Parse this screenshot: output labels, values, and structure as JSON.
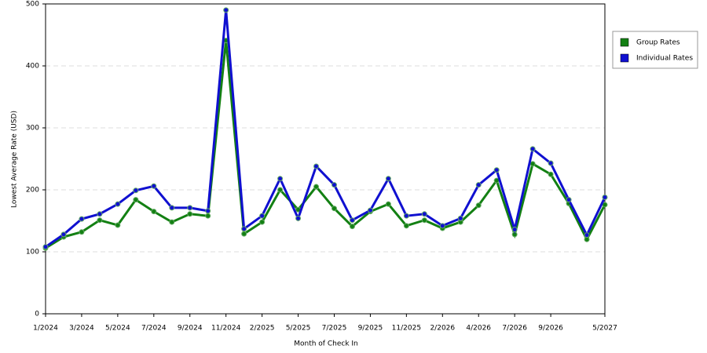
{
  "chart_data": {
    "type": "line",
    "x_label": "Month of Check In",
    "y_label": "Lowest Average Rate (USD)",
    "categories": [
      "1/2024",
      null,
      "3/2024",
      null,
      "5/2024",
      null,
      "7/2024",
      null,
      "9/2024",
      null,
      "11/2024",
      null,
      "2/2025",
      null,
      "5/2025",
      null,
      "7/2025",
      null,
      "9/2025",
      null,
      "11/2025",
      null,
      "2/2026",
      null,
      "4/2026",
      null,
      "7/2026",
      null,
      "9/2026",
      null,
      null,
      "5/2027"
    ],
    "series": [
      {
        "name": "Group Rates",
        "color": "#138013",
        "values": [
          106,
          124,
          132,
          151,
          143,
          184,
          165,
          148,
          161,
          158,
          441,
          129,
          148,
          200,
          168,
          205,
          170,
          141,
          165,
          177,
          142,
          151,
          138,
          148,
          175,
          215,
          128,
          242,
          225,
          178,
          120,
          176
        ]
      },
      {
        "name": "Individual Rates",
        "color": "#1010d0",
        "values": [
          108,
          128,
          153,
          161,
          177,
          199,
          206,
          171,
          171,
          166,
          490,
          137,
          158,
          218,
          154,
          238,
          208,
          151,
          167,
          218,
          158,
          161,
          142,
          154,
          208,
          232,
          136,
          266,
          243,
          184,
          127,
          188
        ]
      }
    ],
    "ylim": [
      0,
      500
    ],
    "yticks": [
      0,
      100,
      200,
      300,
      400,
      500
    ],
    "grid": true,
    "legend": "right"
  }
}
